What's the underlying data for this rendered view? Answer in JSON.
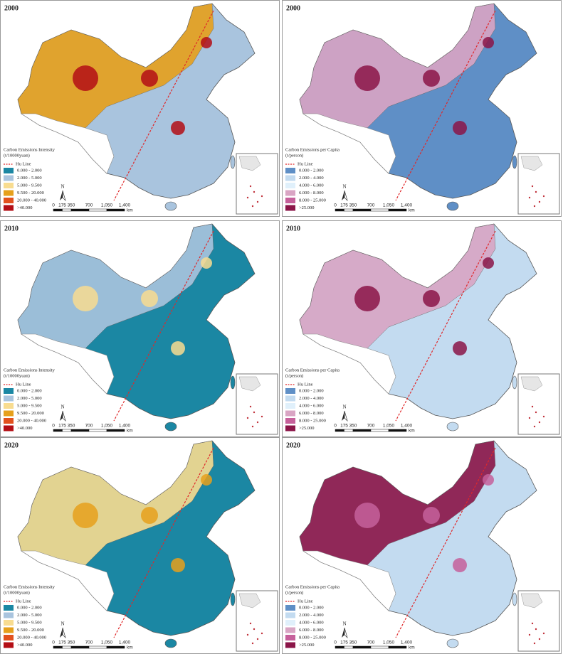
{
  "panels": [
    {
      "year": "2000",
      "legend": {
        "title": [
          "Carbon Emissions Intensity",
          "(t/10000yuan)"
        ],
        "hu_line": "Hu Line",
        "items": [
          {
            "label": "0.000 - 2.000",
            "color": "#1b87a3"
          },
          {
            "label": "2.000 - 5.000",
            "color": "#a9c4de"
          },
          {
            "label": "5.000 - 9.500",
            "color": "#f8dc90"
          },
          {
            "label": "9.500 - 20.000",
            "color": "#e6a01c"
          },
          {
            "label": "20.000 - 40.000",
            "color": "#e2511d"
          },
          {
            "label": ">40.000",
            "color": "#b30e15"
          }
        ]
      },
      "north": "N",
      "scale": {
        "labels": [
          "0",
          "175",
          "350",
          "700",
          "1,050",
          "1,400"
        ],
        "unit": "km"
      }
    },
    {
      "year": "2000",
      "legend": {
        "title": [
          "Carbon Emissions per Capita",
          "(t/person)"
        ],
        "hu_line": "Hu Line",
        "items": [
          {
            "label": "0.000 - 2.000",
            "color": "#5f8fc6"
          },
          {
            "label": "2.000 - 4.000",
            "color": "#c3dbf0"
          },
          {
            "label": "4.000 - 6.000",
            "color": "#e0f0fb"
          },
          {
            "label": "6.000 - 8.000",
            "color": "#d9a5c4"
          },
          {
            "label": "8.000 - 25.000",
            "color": "#c6609b"
          },
          {
            "label": ">25.000",
            "color": "#8b1548"
          }
        ]
      },
      "north": "N",
      "scale": {
        "labels": [
          "0",
          "175",
          "350",
          "700",
          "1,050",
          "1,400"
        ],
        "unit": "km"
      }
    },
    {
      "year": "2010",
      "legend": {
        "title": [
          "Carbon Emissions Intensity",
          "(t/10000yuan)"
        ],
        "hu_line": "Hu Line",
        "items": [
          {
            "label": "0.000 - 2.000",
            "color": "#1b87a3"
          },
          {
            "label": "2.000 - 5.000",
            "color": "#a9c4de"
          },
          {
            "label": "5.000 - 9.500",
            "color": "#f8dc90"
          },
          {
            "label": "9.500 - 20.000",
            "color": "#e6a01c"
          },
          {
            "label": "20.000 - 40.000",
            "color": "#e2511d"
          },
          {
            "label": ">40.000",
            "color": "#b30e15"
          }
        ]
      },
      "north": "N",
      "scale": {
        "labels": [
          "0",
          "175",
          "350",
          "700",
          "1,050",
          "1,400"
        ],
        "unit": "km"
      }
    },
    {
      "year": "2010",
      "legend": {
        "title": [
          "Carbon Emissions per Capita",
          "(t/person)"
        ],
        "hu_line": "Hu Line",
        "items": [
          {
            "label": "0.000 - 2.000",
            "color": "#5f8fc6"
          },
          {
            "label": "2.000 - 4.000",
            "color": "#c3dbf0"
          },
          {
            "label": "4.000 - 6.000",
            "color": "#e0f0fb"
          },
          {
            "label": "6.000 - 8.000",
            "color": "#d9a5c4"
          },
          {
            "label": "8.000 - 25.000",
            "color": "#c6609b"
          },
          {
            "label": ">25.000",
            "color": "#8b1548"
          }
        ]
      },
      "north": "N",
      "scale": {
        "labels": [
          "0",
          "175",
          "350",
          "700",
          "1,050",
          "1,400"
        ],
        "unit": "km"
      }
    },
    {
      "year": "2020",
      "legend": {
        "title": [
          "Carbon Emissions Intensity",
          "(t/10000yuan)"
        ],
        "hu_line": "Hu Line",
        "items": [
          {
            "label": "0.000 - 2.000",
            "color": "#1b87a3"
          },
          {
            "label": "2.000 - 5.000",
            "color": "#a9c4de"
          },
          {
            "label": "5.000 - 9.500",
            "color": "#f8dc90"
          },
          {
            "label": "9.500 - 20.000",
            "color": "#e6a01c"
          },
          {
            "label": "20.000 - 40.000",
            "color": "#e2511d"
          },
          {
            "label": ">40.000",
            "color": "#b30e15"
          }
        ]
      },
      "north": "N",
      "scale": {
        "labels": [
          "0",
          "175",
          "350",
          "700",
          "1,050",
          "1,400"
        ],
        "unit": "km"
      }
    },
    {
      "year": "2020",
      "legend": {
        "title": [
          "Carbon Emissions per Capita",
          "(t/person)"
        ],
        "hu_line": "Hu Line",
        "items": [
          {
            "label": "0.000 - 2.000",
            "color": "#5f8fc6"
          },
          {
            "label": "2.000 - 4.000",
            "color": "#c3dbf0"
          },
          {
            "label": "4.000 - 6.000",
            "color": "#e0f0fb"
          },
          {
            "label": "6.000 - 8.000",
            "color": "#d9a5c4"
          },
          {
            "label": "8.000 - 25.000",
            "color": "#c6609b"
          },
          {
            "label": ">25.000",
            "color": "#8b1548"
          }
        ]
      },
      "north": "N",
      "scale": {
        "labels": [
          "0",
          "175",
          "350",
          "700",
          "1,050",
          "1,400"
        ],
        "unit": "km"
      }
    }
  ]
}
